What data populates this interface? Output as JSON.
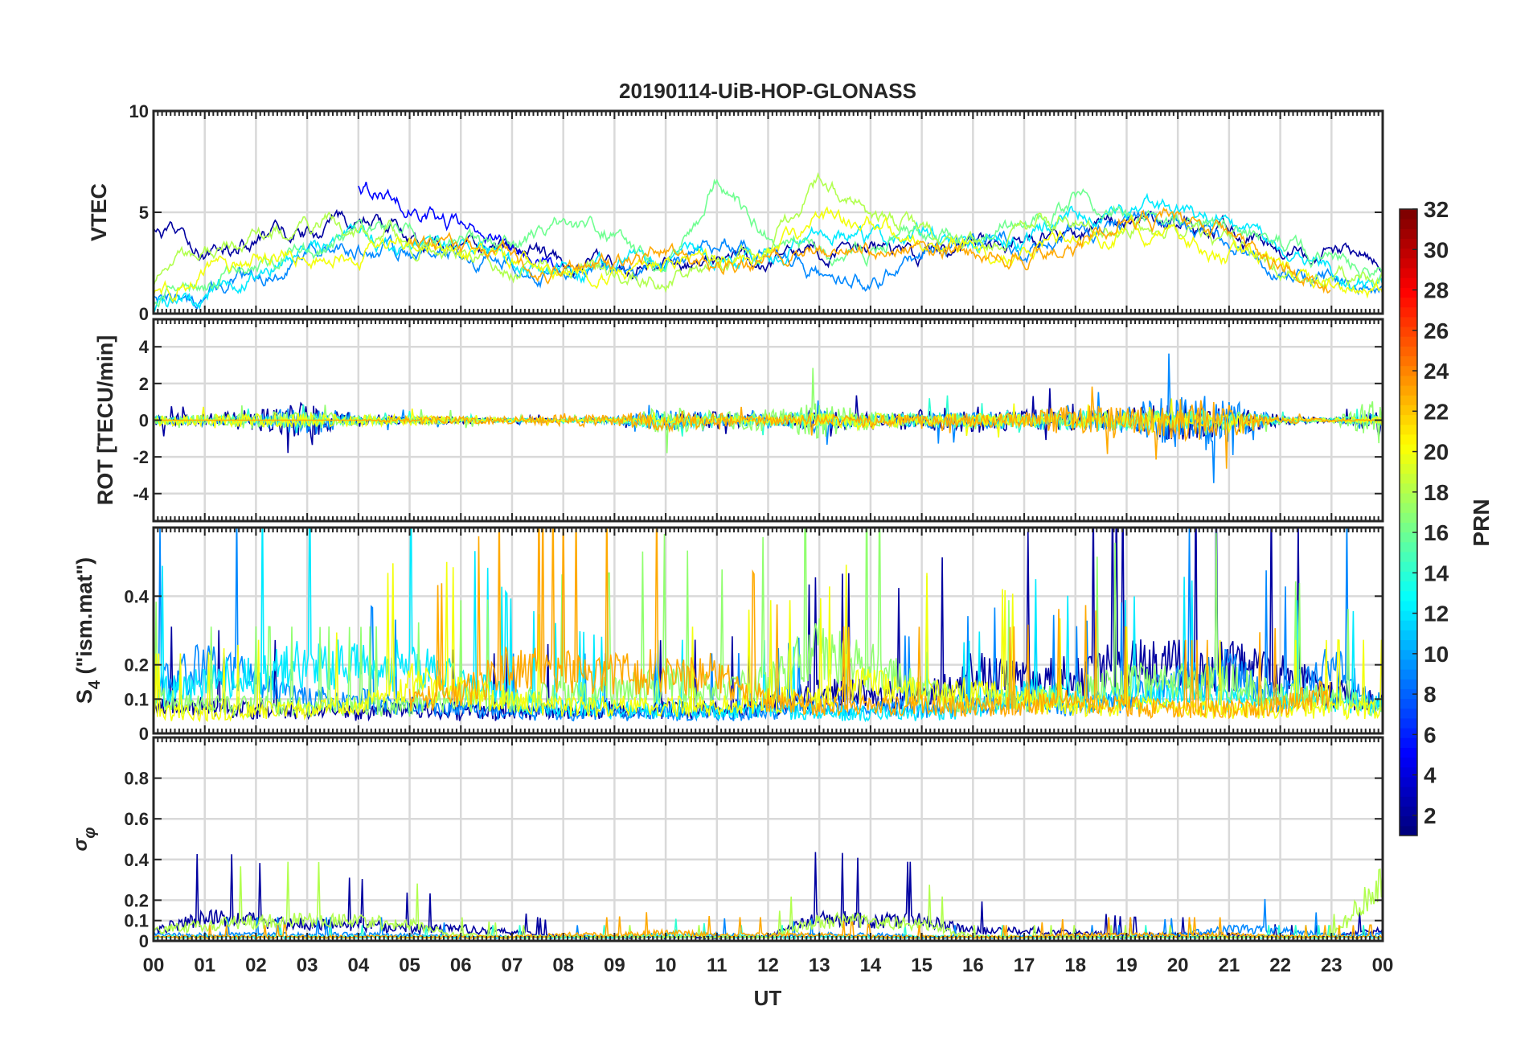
{
  "chart_data": {
    "type": "line",
    "title": "20190114-UiB-HOP-GLONASS",
    "xlabel": "UT",
    "xlim": [
      0,
      24
    ],
    "x_tick_labels": [
      "00",
      "01",
      "02",
      "03",
      "04",
      "05",
      "06",
      "07",
      "08",
      "09",
      "10",
      "11",
      "12",
      "13",
      "14",
      "15",
      "16",
      "17",
      "18",
      "19",
      "20",
      "21",
      "22",
      "23",
      "00"
    ],
    "x_hours": [
      0,
      1,
      2,
      3,
      4,
      5,
      6,
      7,
      8,
      9,
      10,
      11,
      12,
      13,
      14,
      15,
      16,
      17,
      18,
      19,
      20,
      21,
      22,
      23,
      24
    ],
    "colorbar": {
      "label": "PRN",
      "range": [
        1,
        32
      ],
      "ticks": [
        "2",
        "4",
        "6",
        "8",
        "10",
        "12",
        "14",
        "16",
        "18",
        "20",
        "22",
        "24",
        "26",
        "28",
        "30",
        "32"
      ],
      "colormap": "jet"
    },
    "panels": [
      {
        "ylabel": "VTEC",
        "ylim": [
          0,
          10
        ],
        "yticks": [
          0,
          5,
          10
        ],
        "ytick_labels": [
          "0",
          "5",
          "10"
        ],
        "kind": "level",
        "series": [
          {
            "prn": 2,
            "y": [
              4,
              3,
              3.5,
              4,
              4.5,
              4,
              3.5,
              3,
              2.5,
              2.3,
              2.5,
              2.5,
              2.3,
              3,
              3.3,
              2.8,
              3.5,
              3.5,
              4,
              4.5,
              4.5,
              4,
              3,
              3,
              2.5
            ]
          },
          {
            "prn": 5,
            "y": [
              null,
              null,
              null,
              null,
              6.4,
              5.5,
              4.2,
              3,
              2,
              null,
              null,
              null,
              null,
              null,
              null,
              null,
              null,
              null,
              null,
              null,
              null,
              null,
              null,
              null,
              null
            ]
          },
          {
            "prn": 9,
            "y": [
              1,
              1,
              2,
              3,
              3.4,
              3,
              3,
              2.5,
              2,
              2,
              2,
              3.5,
              3,
              2,
              1.5,
              3,
              3.5,
              3,
              4,
              4.5,
              4.5,
              3.5,
              2,
              1.5,
              1
            ]
          },
          {
            "prn": 12,
            "y": [
              0.5,
              1,
              2.5,
              3,
              3.5,
              3.5,
              3.2,
              2.5,
              2.2,
              2.2,
              2.5,
              2.8,
              2.8,
              4,
              3.5,
              4,
              3.5,
              3.5,
              5,
              5,
              5,
              4.5,
              3,
              2,
              1.5
            ]
          },
          {
            "prn": 16,
            "y": [
              0.5,
              1.5,
              2.5,
              3,
              4,
              4,
              3.5,
              3,
              4.5,
              4,
              2,
              6.5,
              4,
              3,
              3,
              4,
              4,
              4.5,
              5.5,
              5,
              4.5,
              4,
              3.5,
              2.5,
              2
            ]
          },
          {
            "prn": 18,
            "y": [
              1.5,
              3,
              3.5,
              4.5,
              4,
              3.5,
              3,
              2.5,
              2,
              2,
              2,
              2.5,
              3,
              6.5,
              5,
              4,
              3.5,
              4,
              4.5,
              4.5,
              4,
              3.5,
              2,
              1.5,
              1.5
            ]
          },
          {
            "prn": 20,
            "y": [
              1,
              2,
              2.5,
              3,
              3,
              3.5,
              3,
              2.5,
              2,
              2,
              2.5,
              2.5,
              3,
              4.5,
              4.5,
              3.5,
              3,
              3,
              3.5,
              4,
              4,
              3,
              2,
              1.5,
              1
            ]
          },
          {
            "prn": 23,
            "y": [
              null,
              null,
              null,
              null,
              null,
              3.5,
              3,
              2.5,
              2,
              2.5,
              3,
              2.5,
              2.5,
              3,
              3,
              3.5,
              3,
              3,
              3.5,
              5,
              4.5,
              3.5,
              2,
              1.5,
              null
            ]
          }
        ]
      },
      {
        "ylabel": "ROT [TECU/min]",
        "ylim": [
          -5.5,
          5.5
        ],
        "yticks": [
          -4,
          -2,
          0,
          2,
          4
        ],
        "ytick_labels": [
          "-4",
          "-2",
          "0",
          "2",
          "4"
        ],
        "kind": "zero",
        "series": [
          {
            "prn": 2,
            "y": [
              0.3,
              0.4,
              0.6,
              1,
              0.4,
              0.2,
              0.2,
              0.1,
              0.1,
              0.1,
              0.3,
              0.5,
              0.2,
              0.6,
              0.4,
              0.6,
              0.8,
              0.6,
              0.6,
              0.6,
              1.2,
              0.8,
              0.3,
              0.1,
              0.6
            ]
          },
          {
            "prn": 9,
            "y": [
              0.2,
              0.2,
              0.3,
              1,
              0.2,
              0.2,
              0.1,
              0.1,
              0.1,
              0.2,
              0.6,
              0.4,
              0.3,
              0.5,
              0.3,
              0.4,
              0.5,
              0.4,
              0.5,
              0.8,
              1.5,
              1.2,
              0.2,
              0.1,
              0.5
            ]
          },
          {
            "prn": 14,
            "y": [
              0.2,
              0.2,
              0.3,
              0.3,
              0.2,
              0.2,
              0.1,
              0.1,
              0.1,
              0.2,
              0.5,
              0.4,
              0.3,
              0.6,
              0.3,
              0.4,
              0.5,
              0.5,
              0.6,
              0.6,
              0.7,
              0.5,
              0.2,
              0.1,
              0.4
            ]
          },
          {
            "prn": 17,
            "y": [
              0.3,
              0.3,
              0.5,
              0.5,
              0.3,
              0.2,
              0.2,
              0.1,
              0.1,
              0.2,
              0.8,
              0.5,
              0.6,
              1,
              0.5,
              0.3,
              0.3,
              0.3,
              0.4,
              0.5,
              0.6,
              0.5,
              0.2,
              0.1,
              1.5
            ]
          },
          {
            "prn": 20,
            "y": [
              0.3,
              0.3,
              0.4,
              0.4,
              0.3,
              0.3,
              0.2,
              0.1,
              0.1,
              0.1,
              0.2,
              0.2,
              0.2,
              0.4,
              0.4,
              0.3,
              0.4,
              0.3,
              0.4,
              0.4,
              0.4,
              0.3,
              0.1,
              0.1,
              0.3
            ]
          },
          {
            "prn": 23,
            "y": [
              0,
              0,
              0,
              0,
              0,
              0.2,
              0.2,
              0.2,
              0.4,
              0.3,
              0.6,
              0.4,
              0.3,
              0.3,
              0.3,
              0.3,
              0.4,
              0.4,
              1,
              0.7,
              1.2,
              1,
              0.2,
              0.1,
              0
            ]
          }
        ]
      },
      {
        "ylabel_main": "S",
        "ylabel_sub": "4",
        "ylabel_rest": " (\"ism.mat\")",
        "ylim": [
          0,
          0.6
        ],
        "yticks": [
          0,
          0.1,
          0.2,
          0.4
        ],
        "ytick_labels": [
          "0",
          "0.1",
          "0.2",
          "0.4"
        ],
        "kind": "positive",
        "series": [
          {
            "prn": 2,
            "y": [
              0.08,
              0.08,
              0.07,
              0.07,
              0.06,
              0.08,
              0.06,
              0.06,
              0.07,
              0.07,
              0.07,
              0.07,
              0.08,
              0.12,
              0.12,
              0.1,
              0.18,
              0.15,
              0.17,
              0.2,
              0.2,
              0.2,
              0.18,
              0.12,
              0.1
            ]
          },
          {
            "prn": 9,
            "y": [
              0.15,
              0.2,
              0.15,
              0.1,
              0.1,
              0.08,
              0.07,
              0.06,
              0.06,
              0.06,
              0.06,
              0.06,
              0.06,
              0.08,
              0.08,
              0.07,
              0.09,
              0.1,
              0.08,
              0.1,
              0.15,
              0.18,
              0.1,
              0.2,
              0.08
            ]
          },
          {
            "prn": 12,
            "y": [
              0.12,
              0.15,
              0.18,
              0.2,
              0.2,
              0.2,
              0.15,
              0.1,
              0.08,
              0.07,
              0.07,
              0.07,
              0.07,
              0.06,
              0.06,
              0.06,
              0.07,
              0.12,
              0.1,
              0.1,
              0.12,
              0.1,
              0.1,
              0.1,
              0.08
            ]
          },
          {
            "prn": 17,
            "y": [
              0.1,
              0.08,
              0.08,
              0.08,
              0.08,
              0.08,
              0.1,
              0.1,
              0.12,
              0.12,
              0.15,
              0.12,
              0.15,
              0.25,
              0.2,
              0.12,
              0.1,
              0.1,
              0.12,
              0.15,
              0.15,
              0.15,
              0.12,
              0.1,
              0.08
            ]
          },
          {
            "prn": 20,
            "y": [
              0.06,
              0.06,
              0.07,
              0.07,
              0.08,
              0.15,
              0.12,
              0.1,
              0.08,
              0.08,
              0.08,
              0.08,
              0.1,
              0.1,
              0.15,
              0.12,
              0.12,
              0.1,
              0.08,
              0.08,
              0.07,
              0.07,
              0.07,
              0.07,
              0.07
            ]
          },
          {
            "prn": 23,
            "y": [
              null,
              null,
              null,
              null,
              null,
              0.1,
              0.12,
              0.2,
              0.18,
              0.18,
              0.18,
              0.17,
              0.1,
              0.08,
              0.08,
              0.08,
              0.08,
              0.08,
              0.1,
              0.08,
              0.07,
              0.07,
              0.08,
              0.12,
              null
            ]
          }
        ]
      },
      {
        "ylabel_main": "σ",
        "ylabel_sub": "φ",
        "ylim": [
          0,
          1
        ],
        "yticks": [
          0,
          0.1,
          0.2,
          0.4,
          0.6,
          0.8
        ],
        "ytick_labels": [
          "0",
          "0.1",
          "0.2",
          "0.4",
          "0.6",
          "0.8"
        ],
        "kind": "positive",
        "series": [
          {
            "prn": 2,
            "y": [
              0.05,
              0.12,
              0.1,
              0.08,
              0.08,
              0.06,
              0.06,
              0.04,
              0.02,
              0.02,
              0.02,
              0.02,
              0.02,
              0.12,
              0.1,
              0.1,
              0.05,
              0.05,
              0.04,
              0.03,
              0.03,
              0.03,
              0.02,
              0.02,
              0.05
            ]
          },
          {
            "prn": 9,
            "y": [
              0.03,
              0.03,
              0.03,
              0.03,
              0.03,
              0.03,
              0.02,
              0.02,
              0.02,
              0.02,
              0.03,
              0.03,
              0.02,
              0.03,
              0.03,
              0.02,
              0.02,
              0.02,
              0.02,
              0.02,
              0.03,
              0.06,
              0.05,
              0.03,
              0.03
            ]
          },
          {
            "prn": 14,
            "y": [
              0.02,
              0.02,
              0.02,
              0.02,
              0.02,
              0.02,
              0.02,
              0.02,
              0.02,
              0.02,
              0.03,
              0.02,
              0.02,
              0.02,
              0.02,
              0.02,
              0.02,
              0.02,
              0.02,
              0.02,
              0.02,
              0.02,
              0.02,
              0.02,
              0.02
            ]
          },
          {
            "prn": 18,
            "y": [
              0.05,
              0.08,
              0.1,
              0.1,
              0.1,
              0.08,
              0.03,
              0.02,
              0.02,
              0.02,
              0.02,
              0.02,
              0.02,
              0.1,
              0.1,
              0.08,
              0.02,
              0.02,
              0.02,
              0.02,
              0.02,
              0.02,
              0.02,
              0.02,
              0.3
            ]
          },
          {
            "prn": 23,
            "y": [
              0.02,
              0.02,
              0.02,
              0.02,
              0.02,
              0.02,
              0.02,
              0.02,
              0.03,
              0.03,
              0.04,
              0.03,
              0.03,
              0.03,
              0.02,
              0.02,
              0.02,
              0.02,
              0.03,
              0.03,
              0.03,
              0.03,
              0.02,
              0.02,
              0.02
            ]
          }
        ]
      }
    ]
  }
}
